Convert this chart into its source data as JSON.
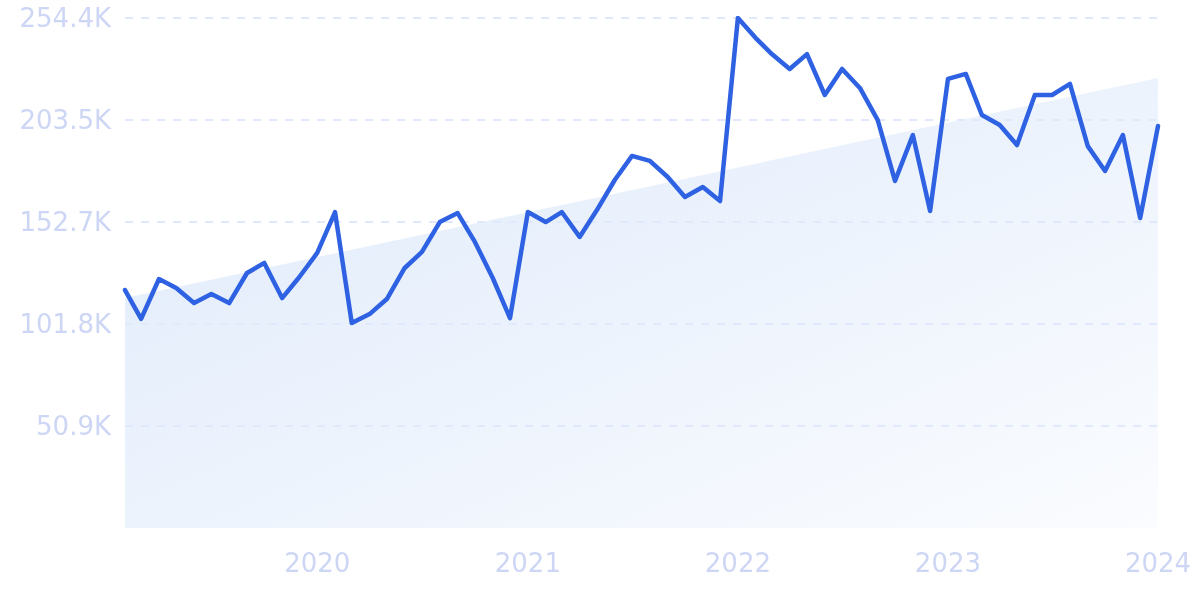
{
  "chart_data": {
    "type": "line",
    "x": [
      "2019-02",
      "2019-03",
      "2019-04",
      "2019-05",
      "2019-06",
      "2019-07",
      "2019-08",
      "2019-09",
      "2019-10",
      "2019-11",
      "2019-12",
      "2020-01",
      "2020-02",
      "2020-03",
      "2020-04",
      "2020-05",
      "2020-06",
      "2020-07",
      "2020-08",
      "2020-09",
      "2020-10",
      "2020-11",
      "2020-12",
      "2021-01",
      "2021-02",
      "2021-03",
      "2021-04",
      "2021-05",
      "2021-06",
      "2021-07",
      "2021-08",
      "2021-09",
      "2021-10",
      "2021-11",
      "2021-12",
      "2022-01",
      "2022-02",
      "2022-03",
      "2022-04",
      "2022-05",
      "2022-06",
      "2022-07",
      "2022-08",
      "2022-09",
      "2022-10",
      "2022-11",
      "2022-12",
      "2023-01",
      "2023-02",
      "2023-03",
      "2023-04",
      "2023-05",
      "2023-06",
      "2023-07",
      "2023-08",
      "2023-09",
      "2023-10",
      "2023-11",
      "2023-12",
      "2024-01"
    ],
    "series": [
      {
        "type": "area",
        "color": "#dfeafb",
        "x": [
          "2019-02",
          "2024-01"
        ],
        "values": [
          114.7,
          224.5
        ]
      },
      {
        "color": "#2f62e3",
        "values": [
          118.7,
          104.3,
          124.2,
          119.7,
          112.2,
          116.7,
          112.2,
          127.2,
          132.2,
          114.7,
          125.2,
          137.2,
          157.6,
          102.3,
          106.7,
          114.2,
          129.7,
          137.7,
          152.6,
          157.1,
          142.7,
          124.7,
          104.7,
          157.6,
          152.6,
          157.6,
          145.2,
          158.6,
          173.6,
          185.6,
          183.1,
          175.1,
          165.1,
          170.1,
          163.1,
          254.4,
          244.4,
          236.4,
          229.0,
          236.4,
          216.0,
          229.0,
          219.5,
          203.5,
          173.1,
          196.0,
          158.1,
          224.0,
          226.5,
          206.0,
          201.0,
          191.0,
          216.0,
          216.0,
          221.5,
          190.5,
          178.1,
          196.0,
          154.6,
          200.5
        ]
      }
    ],
    "xlim": [
      "2019-02",
      "2024-01"
    ],
    "xticks": [
      {
        "value": "2020",
        "label": "2020"
      },
      {
        "value": "2021",
        "label": "2021"
      },
      {
        "value": "2022",
        "label": "2022"
      },
      {
        "value": "2023",
        "label": "2023"
      },
      {
        "value": "2024",
        "label": "2024"
      }
    ],
    "ylim": [
      0,
      254.4
    ],
    "yticks": [
      {
        "value": 50.9,
        "label": "50.9K"
      },
      {
        "value": 101.8,
        "label": "101.8K"
      },
      {
        "value": 152.7,
        "label": "152.7K"
      },
      {
        "value": 203.5,
        "label": "203.5K"
      },
      {
        "value": 254.4,
        "label": "254.4K"
      }
    ],
    "grid": "y",
    "marker": "none",
    "line_style": "solid"
  }
}
